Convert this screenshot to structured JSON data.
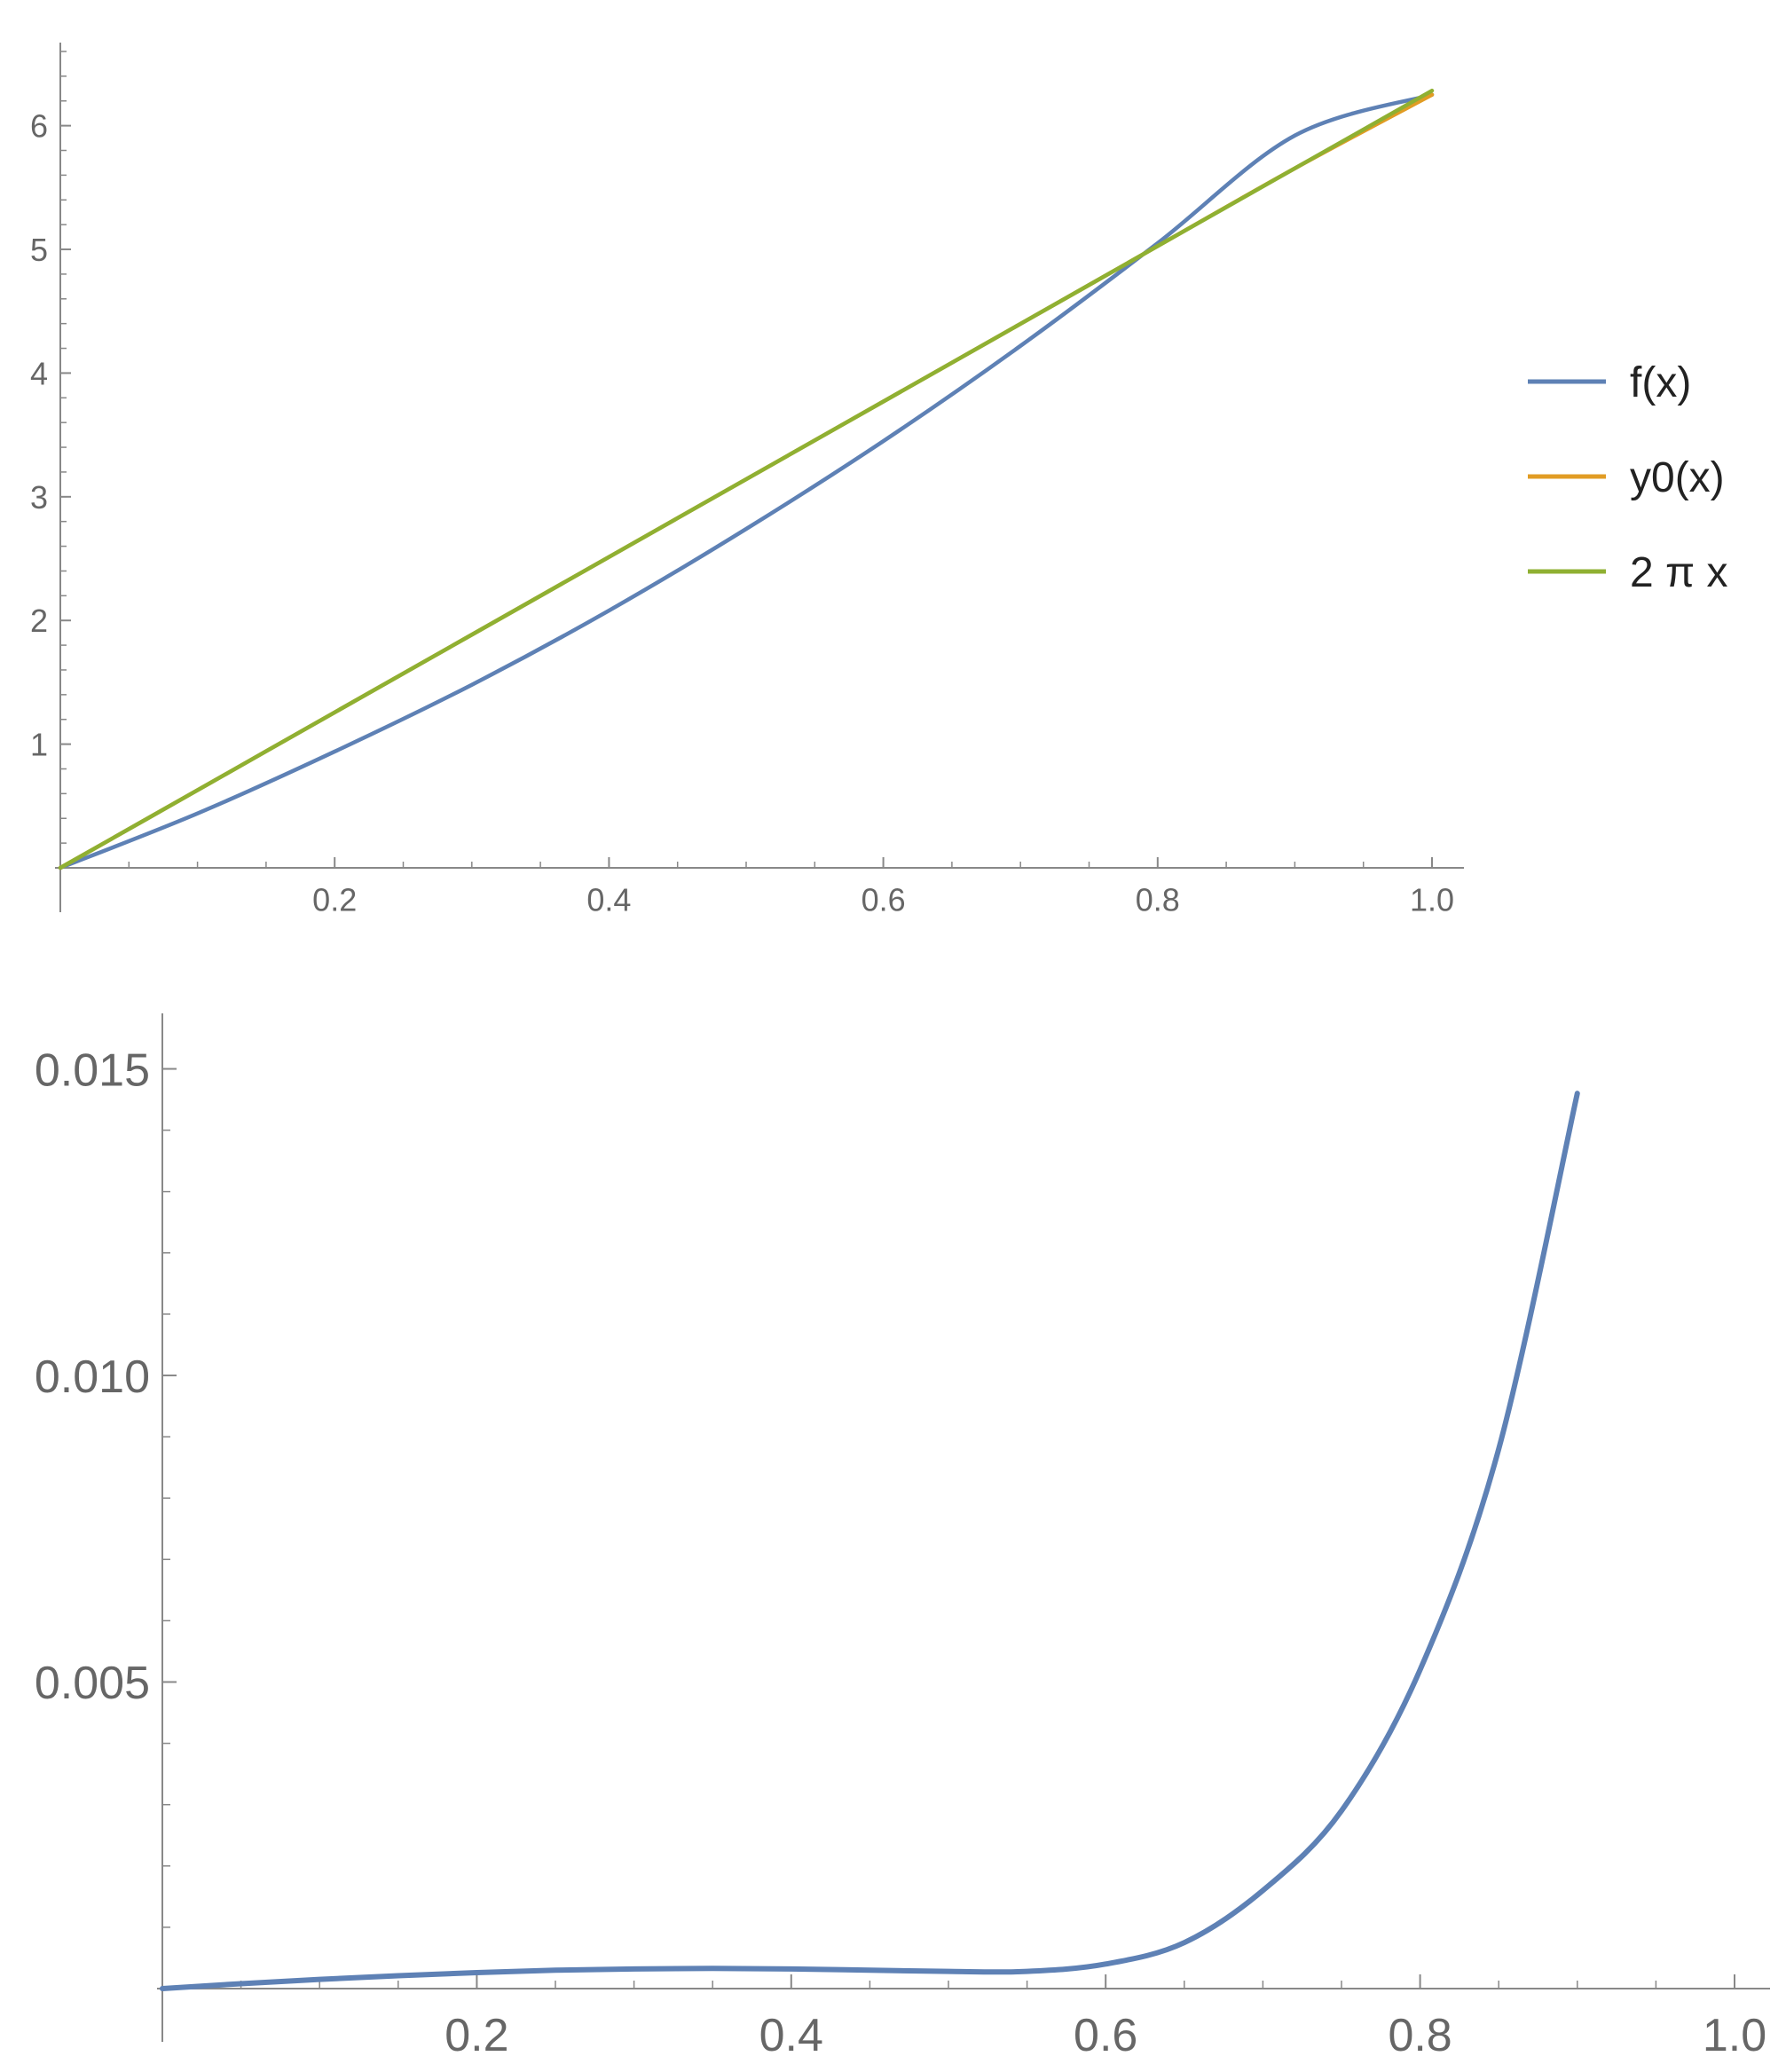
{
  "chart_data": [
    {
      "type": "line",
      "title": "",
      "xlabel": "",
      "ylabel": "",
      "xlim": [
        0,
        1.0
      ],
      "ylim": [
        0,
        6.6
      ],
      "x_ticks": [
        0.2,
        0.4,
        0.6,
        0.8,
        1.0
      ],
      "x_tick_labels": [
        "0.2",
        "0.4",
        "0.6",
        "0.8",
        "1.0"
      ],
      "y_ticks": [
        1,
        2,
        3,
        4,
        5,
        6
      ],
      "y_tick_labels": [
        "1",
        "2",
        "3",
        "4",
        "5",
        "6"
      ],
      "grid": false,
      "legend": "right",
      "series": [
        {
          "name": "f(x)",
          "color": "#5E81B5",
          "x": [
            0,
            0.1,
            0.2,
            0.3,
            0.4,
            0.5,
            0.6,
            0.7,
            0.8,
            0.9,
            1.0
          ],
          "y": [
            0,
            0.44,
            0.94,
            1.48,
            2.08,
            2.74,
            3.45,
            4.22,
            5.05,
            5.92,
            6.25
          ]
        },
        {
          "name": "y0(x)",
          "color": "#E19C24",
          "x": [
            0,
            0.1,
            0.2,
            0.3,
            0.4,
            0.5,
            0.6,
            0.7,
            0.8,
            0.9,
            1.0
          ],
          "y": [
            0,
            0.628,
            1.257,
            1.885,
            2.513,
            3.142,
            3.77,
            4.398,
            5.027,
            5.655,
            6.25
          ]
        },
        {
          "name": "2 π x",
          "color": "#8FB032",
          "x": [
            0,
            0.1,
            0.2,
            0.3,
            0.4,
            0.5,
            0.6,
            0.7,
            0.8,
            0.9,
            1.0
          ],
          "y": [
            0,
            0.628,
            1.257,
            1.885,
            2.513,
            3.142,
            3.77,
            4.398,
            5.027,
            5.655,
            6.283
          ]
        }
      ]
    },
    {
      "type": "line",
      "title": "",
      "xlabel": "",
      "ylabel": "",
      "xlim": [
        0,
        1.0
      ],
      "ylim": [
        0,
        0.0155
      ],
      "x_ticks": [
        0.2,
        0.4,
        0.6,
        0.8,
        1.0
      ],
      "x_tick_labels": [
        "0.2",
        "0.4",
        "0.6",
        "0.8",
        "1.0"
      ],
      "y_ticks": [
        0.005,
        0.01,
        0.015
      ],
      "y_tick_labels": [
        "0.005",
        "0.010",
        "0.015"
      ],
      "grid": false,
      "series": [
        {
          "color": "#5E81B5",
          "x": [
            0,
            0.05,
            0.1,
            0.15,
            0.2,
            0.25,
            0.3,
            0.35,
            0.4,
            0.45,
            0.5,
            0.55,
            0.6,
            0.65,
            0.7,
            0.75,
            0.8,
            0.85,
            0.9
          ],
          "y": [
            0,
            8e-05,
            0.00015,
            0.00021,
            0.00026,
            0.0003,
            0.00032,
            0.00033,
            0.00032,
            0.0003,
            0.00028,
            0.00028,
            0.0004,
            0.00075,
            0.0016,
            0.0029,
            0.0052,
            0.0088,
            0.0146
          ]
        }
      ]
    }
  ]
}
